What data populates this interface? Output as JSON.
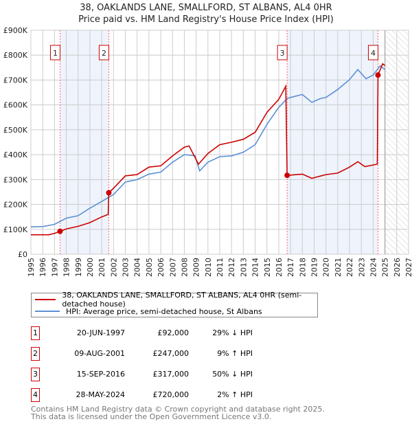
{
  "chart_data": {
    "type": "line",
    "title": "38, OAKLANDS LANE, SMALLFORD, ST ALBANS, AL4 0HR",
    "subtitle": "Price paid vs. HM Land Registry's House Price Index (HPI)",
    "xlim": [
      1995,
      2027
    ],
    "ylim": [
      0,
      900000
    ],
    "x_ticks": [
      "1995",
      "1996",
      "1997",
      "1998",
      "1999",
      "2000",
      "2001",
      "2002",
      "2003",
      "2004",
      "2005",
      "2006",
      "2007",
      "2008",
      "2009",
      "2010",
      "2011",
      "2012",
      "2013",
      "2014",
      "2015",
      "2016",
      "2017",
      "2018",
      "2019",
      "2020",
      "2021",
      "2022",
      "2023",
      "2024",
      "2025",
      "2026",
      "2027"
    ],
    "y_ticks": [
      {
        "value": 0,
        "label": "£0"
      },
      {
        "value": 100000,
        "label": "£100K"
      },
      {
        "value": 200000,
        "label": "£200K"
      },
      {
        "value": 300000,
        "label": "£300K"
      },
      {
        "value": 400000,
        "label": "£400K"
      },
      {
        "value": 500000,
        "label": "£500K"
      },
      {
        "value": 600000,
        "label": "£600K"
      },
      {
        "value": 700000,
        "label": "£700K"
      },
      {
        "value": 800000,
        "label": "£800K"
      },
      {
        "value": 900000,
        "label": "£900K"
      }
    ],
    "grid": true,
    "forecast_hatch_from": 2025.0,
    "shaded_ranges": [
      [
        1997.47,
        2001.6
      ],
      [
        2016.71,
        2024.41
      ]
    ],
    "series": [
      {
        "name": "38, OAKLANDS LANE, SMALLFORD, ST ALBANS, AL4 0HR (semi-detached house)",
        "color": "#cc0000",
        "x": [
          1995,
          1996.5,
          1997.0,
          1997.47,
          1998,
          1999,
          2000,
          2001,
          2001.55,
          2001.6,
          2002,
          2003,
          2004,
          2005,
          2006,
          2007,
          2008,
          2008.4,
          2009.2,
          2010,
          2011,
          2012,
          2013,
          2014,
          2015,
          2016,
          2016.6,
          2016.71,
          2017,
          2018,
          2018.8,
          2020,
          2021,
          2022,
          2022.7,
          2023.3,
          2024.35,
          2024.41,
          2024.8,
          2025
        ],
        "y": [
          78000,
          78000,
          84000,
          92000,
          102000,
          112000,
          127000,
          150000,
          160000,
          247000,
          265000,
          315000,
          320000,
          350000,
          355000,
          395000,
          430000,
          435000,
          362000,
          405000,
          440000,
          450000,
          462000,
          490000,
          570000,
          622000,
          675000,
          317000,
          318000,
          322000,
          305000,
          320000,
          326000,
          350000,
          372000,
          352000,
          362000,
          720000,
          765000,
          758000
        ]
      },
      {
        "name": "HPI: Average price, semi-detached house, St Albans",
        "color": "#5b8fd4",
        "x": [
          1995,
          1996,
          1997,
          1998,
          1999,
          2000,
          2001,
          2002,
          2003,
          2004,
          2005,
          2006,
          2007,
          2008,
          2008.9,
          2009.3,
          2010,
          2011,
          2012,
          2013,
          2014,
          2015,
          2016,
          2016.7,
          2017,
          2018,
          2018.8,
          2019.5,
          2020,
          2021,
          2022,
          2022.7,
          2023.4,
          2024,
          2024.6,
          2025
        ],
        "y": [
          110000,
          111000,
          120000,
          145000,
          155000,
          185000,
          212000,
          240000,
          290000,
          300000,
          322000,
          330000,
          370000,
          400000,
          396000,
          335000,
          370000,
          392000,
          395000,
          410000,
          440000,
          522000,
          590000,
          625000,
          630000,
          642000,
          610000,
          625000,
          630000,
          662000,
          702000,
          742000,
          705000,
          720000,
          757000,
          742000
        ]
      }
    ],
    "sales": [
      {
        "num": "1",
        "x": 1997.47,
        "price": 92000
      },
      {
        "num": "2",
        "x": 2001.6,
        "price": 247000
      },
      {
        "num": "3",
        "x": 2016.71,
        "price": 317000
      },
      {
        "num": "4",
        "x": 2024.41,
        "price": 720000
      }
    ]
  },
  "legend": {
    "property": "38, OAKLANDS LANE, SMALLFORD, ST ALBANS, AL4 0HR (semi-detached house)",
    "hpi": "HPI: Average price, semi-detached house, St Albans"
  },
  "table": [
    {
      "num": "1",
      "date": "20-JUN-1997",
      "price": "£92,000",
      "hpi": "29% ↓ HPI"
    },
    {
      "num": "2",
      "date": "09-AUG-2001",
      "price": "£247,000",
      "hpi": "9% ↑ HPI"
    },
    {
      "num": "3",
      "date": "15-SEP-2016",
      "price": "£317,000",
      "hpi": "50% ↓ HPI"
    },
    {
      "num": "4",
      "date": "28-MAY-2024",
      "price": "£720,000",
      "hpi": "2% ↑ HPI"
    }
  ],
  "footer": {
    "line1": "Contains HM Land Registry data © Crown copyright and database right 2025.",
    "line2": "This data is licensed under the Open Government Licence v3.0."
  }
}
